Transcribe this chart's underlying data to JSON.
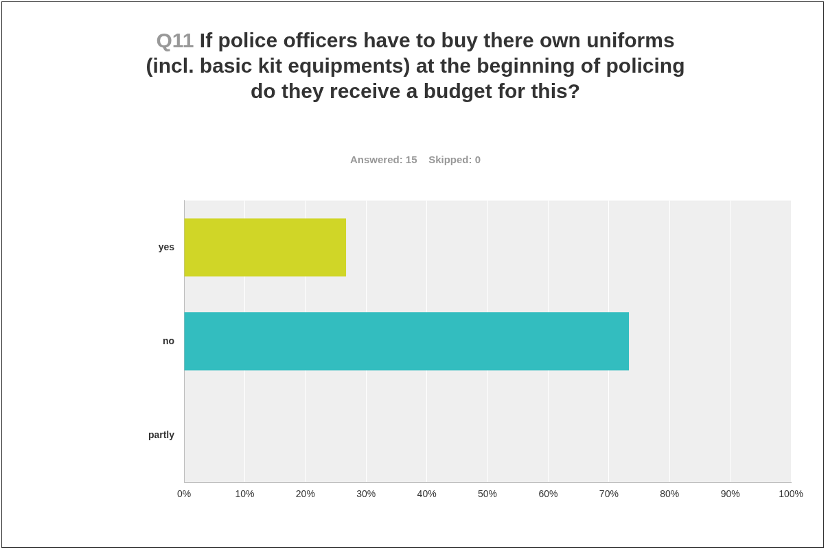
{
  "chart_data": {
    "type": "bar",
    "orientation": "horizontal",
    "title": "Q11 If police officers have to buy there own uniforms (incl. basic kit equipments) at the beginning of policing do they receive a budget for this?",
    "subtitle": "Answered: 15    Skipped: 0",
    "categories": [
      "yes",
      "no",
      "partly"
    ],
    "values": [
      26.7,
      73.3,
      0
    ],
    "colors": [
      "#d0d627",
      "#33bdbf",
      "#888888"
    ],
    "xlim": [
      0,
      100
    ],
    "xticks": [
      {
        "value": 0,
        "label": "0%"
      },
      {
        "value": 10,
        "label": "10%"
      },
      {
        "value": 20,
        "label": "20%"
      },
      {
        "value": 30,
        "label": "30%"
      },
      {
        "value": 40,
        "label": "40%"
      },
      {
        "value": 50,
        "label": "50%"
      },
      {
        "value": 60,
        "label": "60%"
      },
      {
        "value": 70,
        "label": "70%"
      },
      {
        "value": 80,
        "label": "80%"
      },
      {
        "value": 90,
        "label": "90%"
      },
      {
        "value": 100,
        "label": "100%"
      }
    ],
    "grid": "x",
    "legend": false
  }
}
